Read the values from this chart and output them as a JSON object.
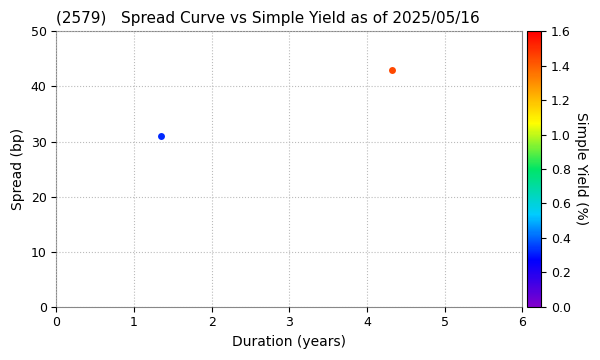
{
  "title": "(2579)   Spread Curve vs Simple Yield as of 2025/05/16",
  "xlabel": "Duration (years)",
  "ylabel": "Spread (bp)",
  "colorbar_label": "Simple Yield (%)",
  "xlim": [
    0,
    6
  ],
  "ylim": [
    0,
    50
  ],
  "xticks": [
    0,
    1,
    2,
    3,
    4,
    5,
    6
  ],
  "yticks": [
    0,
    10,
    20,
    30,
    40,
    50
  ],
  "colorbar_min": 0.0,
  "colorbar_max": 1.6,
  "data_points": [
    {
      "duration": 1.35,
      "spread": 31,
      "simple_yield": 0.32
    },
    {
      "duration": 4.32,
      "spread": 43,
      "simple_yield": 1.45
    }
  ],
  "marker_size": 25,
  "background_color": "#ffffff",
  "grid_color": "#bbbbbb",
  "title_fontsize": 11,
  "axis_label_fontsize": 10,
  "tick_fontsize": 9,
  "cbar_tick_fontsize": 9,
  "colorbar_ticks": [
    0.0,
    0.2,
    0.4,
    0.6,
    0.8,
    1.0,
    1.2,
    1.4,
    1.6
  ]
}
